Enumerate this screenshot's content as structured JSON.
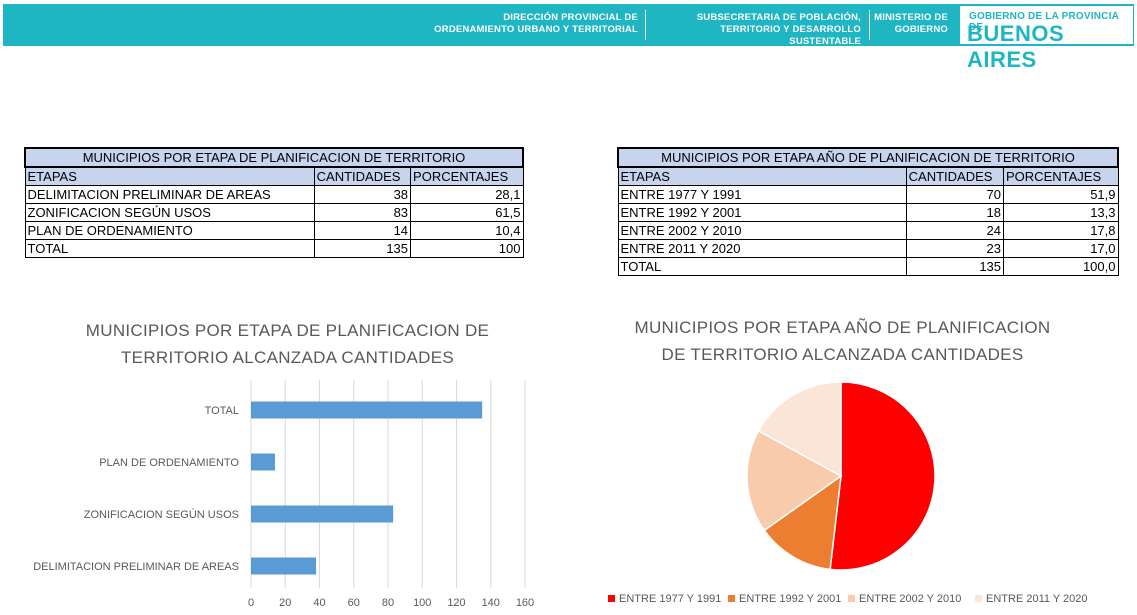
{
  "header": {
    "dir_line1": "DIRECCIÓN PROVINCIAL DE",
    "dir_line2": "ORDENAMIENTO URBANO Y TERRITORIAL",
    "sub_line1": "SUBSECRETARIA DE POBLACIÓN,",
    "sub_line2": "TERRITORIO Y DESARROLLO SUSTENTABLE",
    "min_line1": "MINISTERIO DE",
    "min_line2": "GOBIERNO",
    "gov_small": "GOBIERNO DE LA PROVINCIA DE",
    "gov_big": "BUENOS AIRES",
    "band_color": "#1fb6c4"
  },
  "table1": {
    "title": "MUNICIPIOS POR ETAPA DE PLANIFICACION DE TERRITORIO",
    "headers": [
      "ETAPAS",
      "CANTIDADES",
      "PORCENTAJES"
    ],
    "rows": [
      [
        "DELIMITACION PRELIMINAR DE AREAS",
        "38",
        "28,1"
      ],
      [
        "ZONIFICACION SEGÚN USOS",
        "83",
        "61,5"
      ],
      [
        "PLAN DE ORDENAMIENTO",
        "14",
        "10,4"
      ],
      [
        "TOTAL",
        "135",
        "100"
      ]
    ]
  },
  "table2": {
    "title": "MUNICIPIOS POR ETAPA AÑO DE PLANIFICACION DE TERRITORIO",
    "headers": [
      "ETAPAS",
      "CANTIDADES",
      "PORCENTAJES"
    ],
    "rows": [
      [
        "ENTRE 1977 Y 1991",
        "70",
        "51,9"
      ],
      [
        "ENTRE 1992 Y 2001",
        "18",
        "13,3"
      ],
      [
        "ENTRE 2002 Y 2010",
        "24",
        "17,8"
      ],
      [
        "ENTRE 2011 Y 2020",
        "23",
        "17,0"
      ],
      [
        "TOTAL",
        "135",
        "100,0"
      ]
    ]
  },
  "chart_data": [
    {
      "type": "bar",
      "orientation": "horizontal",
      "title_line1": "MUNICIPIOS POR ETAPA DE PLANIFICACION DE",
      "title_line2": "TERRITORIO ALCANZADA CANTIDADES",
      "categories": [
        "DELIMITACION PRELIMINAR DE AREAS",
        "ZONIFICACION SEGÚN USOS",
        "PLAN DE ORDENAMIENTO",
        "TOTAL"
      ],
      "values": [
        38,
        83,
        14,
        135
      ],
      "xlim": [
        0,
        160
      ],
      "xticks": [
        "0",
        "20",
        "40",
        "60",
        "80",
        "100",
        "120",
        "140",
        "160"
      ],
      "bar_color": "#5b9bd5",
      "grid": "vertical"
    },
    {
      "type": "pie",
      "title_line1": "MUNICIPIOS POR ETAPA AÑO DE PLANIFICACION",
      "title_line2": "DE TERRITORIO ALCANZADA CANTIDADES",
      "labels": [
        "ENTRE 1977 Y 1991",
        "ENTRE 1992 Y 2001",
        "ENTRE 2002 Y 2010",
        "ENTRE 2011 Y 2020"
      ],
      "values": [
        70,
        18,
        24,
        23
      ],
      "colors": [
        "#ff0000",
        "#ed7d31",
        "#f8cbad",
        "#fbe5d6"
      ],
      "legend": "bottom"
    }
  ]
}
